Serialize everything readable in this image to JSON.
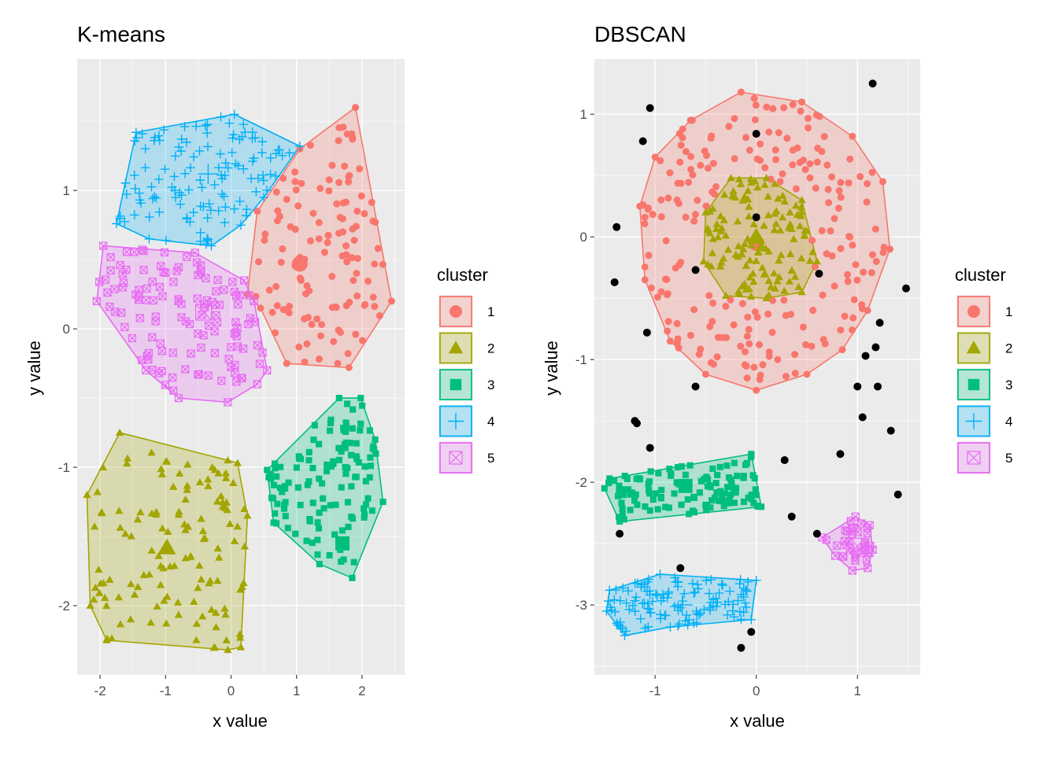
{
  "chart_data": [
    {
      "type": "scatter",
      "title": "K-means",
      "xlabel": "x value",
      "ylabel": "y value",
      "xlim": [
        -2.35,
        2.65
      ],
      "ylim": [
        -2.5,
        1.95
      ],
      "xticks": [
        -2,
        -1,
        0,
        1,
        2
      ],
      "xtick_labels": [
        "-2",
        "-1",
        "0",
        "1",
        "2"
      ],
      "yticks": [
        -2,
        -1,
        0,
        1
      ],
      "ytick_labels": [
        "-2",
        "-1",
        "0",
        "1"
      ],
      "grid": true,
      "legend_title": "cluster",
      "legend_labels": [
        "1",
        "2",
        "3",
        "4",
        "5"
      ],
      "series": [
        {
          "name": "1",
          "marker": "circle",
          "color": "#F8766D",
          "hull": [
            [
              1.9,
              1.6
            ],
            [
              2.45,
              0.2
            ],
            [
              1.8,
              -0.28
            ],
            [
              0.85,
              -0.25
            ],
            [
              0.45,
              0.15
            ],
            [
              0.25,
              0.25
            ],
            [
              0.4,
              0.85
            ],
            [
              1.05,
              1.3
            ]
          ],
          "centroid": [
            1.05,
            0.47
          ]
        },
        {
          "name": "2",
          "marker": "triangle",
          "color": "#A3A500",
          "hull": [
            [
              -1.7,
              -0.75
            ],
            [
              -2.2,
              -1.2
            ],
            [
              -2.15,
              -2.0
            ],
            [
              -1.9,
              -2.25
            ],
            [
              -0.05,
              -2.32
            ],
            [
              0.15,
              -2.3
            ],
            [
              0.25,
              -1.35
            ],
            [
              0.1,
              -0.97
            ],
            [
              -0.05,
              -0.95
            ]
          ],
          "centroid": [
            -0.98,
            -1.58
          ]
        },
        {
          "name": "3",
          "marker": "square",
          "color": "#00BF7D",
          "hull": [
            [
              1.65,
              -0.5
            ],
            [
              1.98,
              -0.5
            ],
            [
              2.2,
              -0.8
            ],
            [
              2.32,
              -1.25
            ],
            [
              1.85,
              -1.8
            ],
            [
              1.35,
              -1.7
            ],
            [
              0.65,
              -1.4
            ],
            [
              0.55,
              -1.02
            ]
          ],
          "centroid": [
            1.7,
            -1.55
          ]
        },
        {
          "name": "4",
          "marker": "plus",
          "color": "#00B0F6",
          "hull": [
            [
              -1.45,
              1.42
            ],
            [
              0.05,
              1.55
            ],
            [
              1.05,
              1.32
            ],
            [
              0.5,
              0.95
            ],
            [
              0.15,
              0.75
            ],
            [
              -0.3,
              0.6
            ],
            [
              -1.25,
              0.65
            ],
            [
              -1.75,
              0.76
            ]
          ],
          "centroid": [
            -0.35,
            1.12
          ]
        },
        {
          "name": "5",
          "marker": "boxx",
          "color": "#E76BF3",
          "hull": [
            [
              -1.95,
              0.6
            ],
            [
              -0.55,
              0.55
            ],
            [
              0.2,
              0.35
            ],
            [
              0.35,
              0.2
            ],
            [
              0.55,
              -0.3
            ],
            [
              0.4,
              -0.4
            ],
            [
              -0.05,
              -0.53
            ],
            [
              -0.8,
              -0.5
            ],
            [
              -1.3,
              -0.3
            ],
            [
              -2.05,
              0.2
            ]
          ],
          "centroid": [
            -0.42,
            0.12
          ]
        }
      ]
    },
    {
      "type": "scatter",
      "title": "DBSCAN",
      "xlabel": "x value",
      "ylabel": "y value",
      "xlim": [
        -1.6,
        1.62
      ],
      "ylim": [
        -3.57,
        1.45
      ],
      "xticks": [
        -1,
        0,
        1
      ],
      "xtick_labels": [
        "-1",
        "0",
        "1"
      ],
      "yticks": [
        -3,
        -2,
        -1,
        0,
        1
      ],
      "ytick_labels": [
        "-3",
        "-2",
        "-1",
        "0",
        "1"
      ],
      "grid": true,
      "legend_title": "cluster",
      "legend_labels": [
        "1",
        "2",
        "3",
        "4",
        "5"
      ],
      "noise_color": "#000000",
      "series": [
        {
          "name": "1",
          "marker": "circle",
          "color": "#F8766D",
          "hull": [
            [
              -0.15,
              1.18
            ],
            [
              0.45,
              1.1
            ],
            [
              0.95,
              0.82
            ],
            [
              1.25,
              0.45
            ],
            [
              1.32,
              -0.1
            ],
            [
              1.1,
              -0.6
            ],
            [
              0.85,
              -0.92
            ],
            [
              0.5,
              -1.12
            ],
            [
              0.0,
              -1.25
            ],
            [
              -0.5,
              -1.12
            ],
            [
              -0.85,
              -0.85
            ],
            [
              -1.1,
              -0.35
            ],
            [
              -1.15,
              0.25
            ],
            [
              -1.0,
              0.65
            ],
            [
              -0.65,
              0.95
            ]
          ],
          "centroid": [
            0.0,
            -0.05
          ]
        },
        {
          "name": "2",
          "marker": "triangle",
          "color": "#A3A500",
          "hull": [
            [
              -0.25,
              0.48
            ],
            [
              0.1,
              0.48
            ],
            [
              0.45,
              0.3
            ],
            [
              0.6,
              -0.2
            ],
            [
              0.45,
              -0.45
            ],
            [
              0.1,
              -0.5
            ],
            [
              -0.3,
              -0.48
            ],
            [
              -0.52,
              -0.2
            ],
            [
              -0.5,
              0.2
            ]
          ],
          "centroid": [
            0.0,
            0.0
          ]
        },
        {
          "name": "3",
          "marker": "square",
          "color": "#00BF7D",
          "hull": [
            [
              -1.45,
              -1.97
            ],
            [
              -0.05,
              -1.77
            ],
            [
              0.05,
              -2.2
            ],
            [
              -1.35,
              -2.32
            ],
            [
              -1.5,
              -2.05
            ]
          ],
          "centroid": [
            -0.7,
            -2.03
          ]
        },
        {
          "name": "4",
          "marker": "plus",
          "color": "#00B0F6",
          "hull": [
            [
              -1.45,
              -2.88
            ],
            [
              -0.95,
              -2.75
            ],
            [
              0.0,
              -2.8
            ],
            [
              -0.05,
              -3.12
            ],
            [
              -0.85,
              -3.18
            ],
            [
              -1.3,
              -3.25
            ],
            [
              -1.48,
              -3.05
            ]
          ],
          "centroid": [
            -0.73,
            -3.0
          ]
        },
        {
          "name": "5",
          "marker": "boxx",
          "color": "#E76BF3",
          "hull": [
            [
              0.98,
              -2.28
            ],
            [
              1.12,
              -2.35
            ],
            [
              1.15,
              -2.55
            ],
            [
              1.1,
              -2.7
            ],
            [
              0.95,
              -2.72
            ],
            [
              0.78,
              -2.6
            ],
            [
              0.65,
              -2.45
            ]
          ],
          "centroid": [
            1.0,
            -2.52
          ]
        }
      ],
      "noise": [
        [
          -1.05,
          1.05
        ],
        [
          -1.12,
          0.78
        ],
        [
          0.0,
          0.84
        ],
        [
          1.15,
          1.25
        ],
        [
          -1.38,
          0.08
        ],
        [
          -1.4,
          -0.37
        ],
        [
          -0.6,
          -0.27
        ],
        [
          0.62,
          -0.3
        ],
        [
          1.48,
          -0.42
        ],
        [
          1.22,
          -0.7
        ],
        [
          1.18,
          -0.9
        ],
        [
          1.08,
          -0.97
        ],
        [
          1.2,
          -1.22
        ],
        [
          1.0,
          -1.22
        ],
        [
          1.05,
          -1.47
        ],
        [
          1.33,
          -1.58
        ],
        [
          0.83,
          -1.77
        ],
        [
          -1.08,
          -0.78
        ],
        [
          -0.6,
          -1.22
        ],
        [
          -1.18,
          -1.52
        ],
        [
          -1.2,
          -1.5
        ],
        [
          -1.05,
          -1.72
        ],
        [
          0.28,
          -1.82
        ],
        [
          1.4,
          -2.1
        ],
        [
          0.35,
          -2.28
        ],
        [
          0.6,
          -2.42
        ],
        [
          -1.35,
          -2.42
        ],
        [
          -0.75,
          -2.7
        ],
        [
          -0.05,
          -3.22
        ],
        [
          -0.15,
          -3.35
        ],
        [
          0.0,
          0.16
        ]
      ]
    }
  ]
}
